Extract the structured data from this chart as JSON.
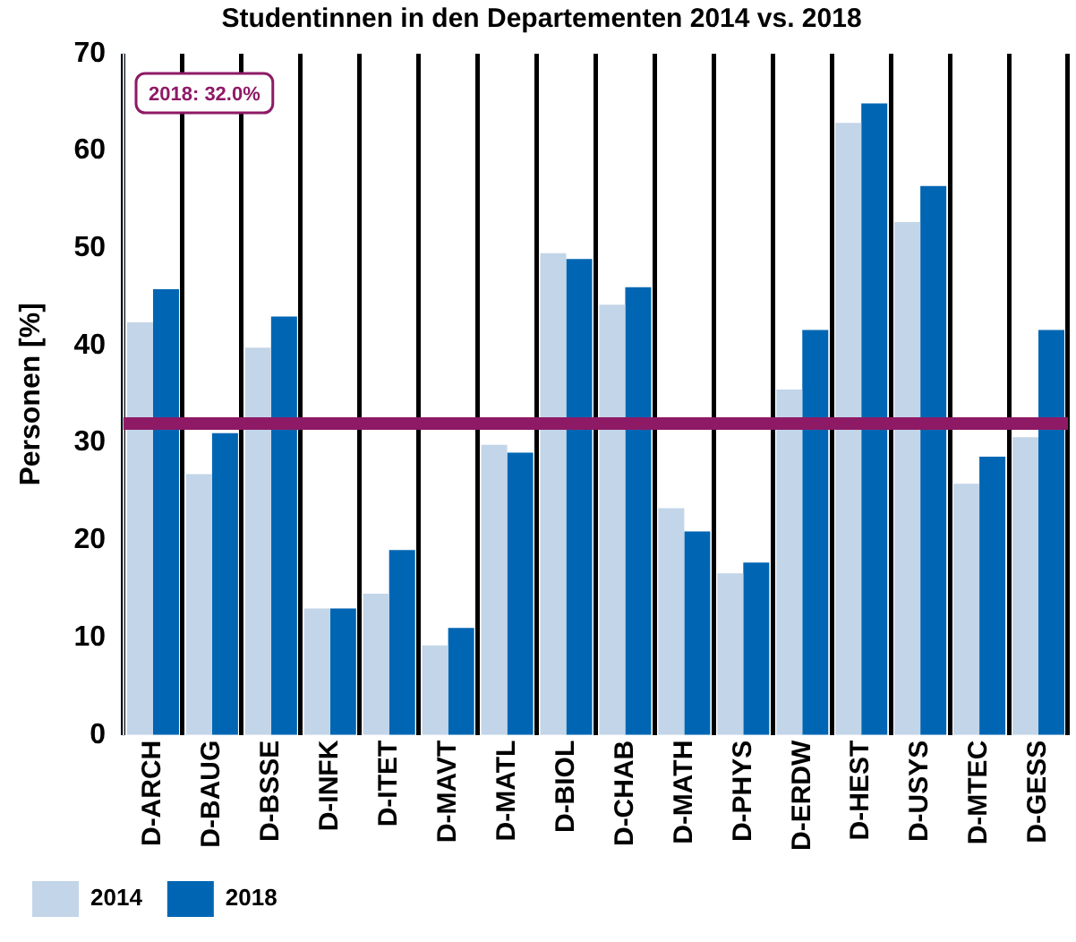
{
  "chart_data": {
    "type": "bar",
    "title": "Studentinnen in den Departementen 2014 vs. 2018",
    "ylabel": "Personen [%]",
    "categories": [
      "D-ARCH",
      "D-BAUG",
      "D-BSSE",
      "D-INFK",
      "D-ITET",
      "D-MAVT",
      "D-MATL",
      "D-BIOL",
      "D-CHAB",
      "D-MATH",
      "D-PHYS",
      "D-ERDW",
      "D-HEST",
      "D-USYS",
      "D-MTEC",
      "D-GESS"
    ],
    "series": [
      {
        "name": "2014",
        "color": "#c3d5e8",
        "values": [
          42.4,
          26.8,
          39.8,
          13,
          14.5,
          9.2,
          29.8,
          49.5,
          44.2,
          23.3,
          16.6,
          35.5,
          62.9,
          52.7,
          25.8,
          30.6
        ]
      },
      {
        "name": "2018",
        "color": "#0066b3",
        "values": [
          45.8,
          31,
          43,
          13,
          19,
          11,
          29,
          48.9,
          46,
          20.9,
          17.7,
          41.6,
          64.9,
          56.4,
          28.6,
          41.6
        ]
      }
    ],
    "ylim": [
      0,
      70
    ],
    "yticks": [
      0,
      10,
      20,
      30,
      40,
      50,
      60,
      70
    ],
    "grid": "x",
    "legend": "bottom left",
    "ref_lines": [
      {
        "axis": "y",
        "value": 32,
        "label": "2018: 32.0%",
        "color": "#8e1a66"
      }
    ]
  }
}
